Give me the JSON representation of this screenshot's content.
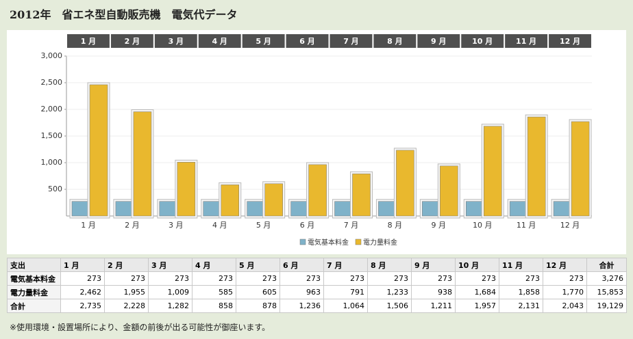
{
  "title": "2012年　省エネ型自動販売機　電気代データ",
  "chart_data": {
    "type": "bar",
    "categories": [
      "1 月",
      "2 月",
      "3 月",
      "4 月",
      "5 月",
      "6 月",
      "7 月",
      "8 月",
      "9 月",
      "10 月",
      "11 月",
      "12 月"
    ],
    "series": [
      {
        "name": "電気基本料金",
        "color": "#7fb2c9",
        "values": [
          273,
          273,
          273,
          273,
          273,
          273,
          273,
          273,
          273,
          273,
          273,
          273
        ]
      },
      {
        "name": "電力量料金",
        "color": "#e9b82e",
        "values": [
          2462,
          1955,
          1009,
          585,
          605,
          963,
          791,
          1233,
          938,
          1684,
          1858,
          1770
        ]
      }
    ],
    "ylim": [
      0,
      3000
    ],
    "yticks": [
      500,
      {
        "value": 1000,
        "label": "1,000"
      },
      {
        "value": 1500,
        "label": "1,500"
      },
      {
        "value": 2000,
        "label": "2,000"
      },
      {
        "value": 2500,
        "label": "2,500"
      },
      {
        "value": 3000,
        "label": "3,000"
      }
    ],
    "grid": true,
    "legend": "bottom"
  },
  "table": {
    "header": [
      "支出",
      "1 月",
      "2 月",
      "3 月",
      "4 月",
      "5 月",
      "6 月",
      "7 月",
      "8 月",
      "9 月",
      "10 月",
      "11 月",
      "12 月",
      "合計"
    ],
    "rows": [
      [
        "電気基本料金",
        "273",
        "273",
        "273",
        "273",
        "273",
        "273",
        "273",
        "273",
        "273",
        "273",
        "273",
        "273",
        "3,276"
      ],
      [
        "電力量料金",
        "2,462",
        "1,955",
        "1,009",
        "585",
        "605",
        "963",
        "791",
        "1,233",
        "938",
        "1,684",
        "1,858",
        "1,770",
        "15,853"
      ],
      [
        "合計",
        "2,735",
        "2,228",
        "1,282",
        "858",
        "878",
        "1,236",
        "1,064",
        "1,506",
        "1,211",
        "1,957",
        "2,131",
        "2,043",
        "19,129"
      ]
    ]
  },
  "note": "※使用環境・設置場所により、金額の前後が出る可能性が御座います。"
}
